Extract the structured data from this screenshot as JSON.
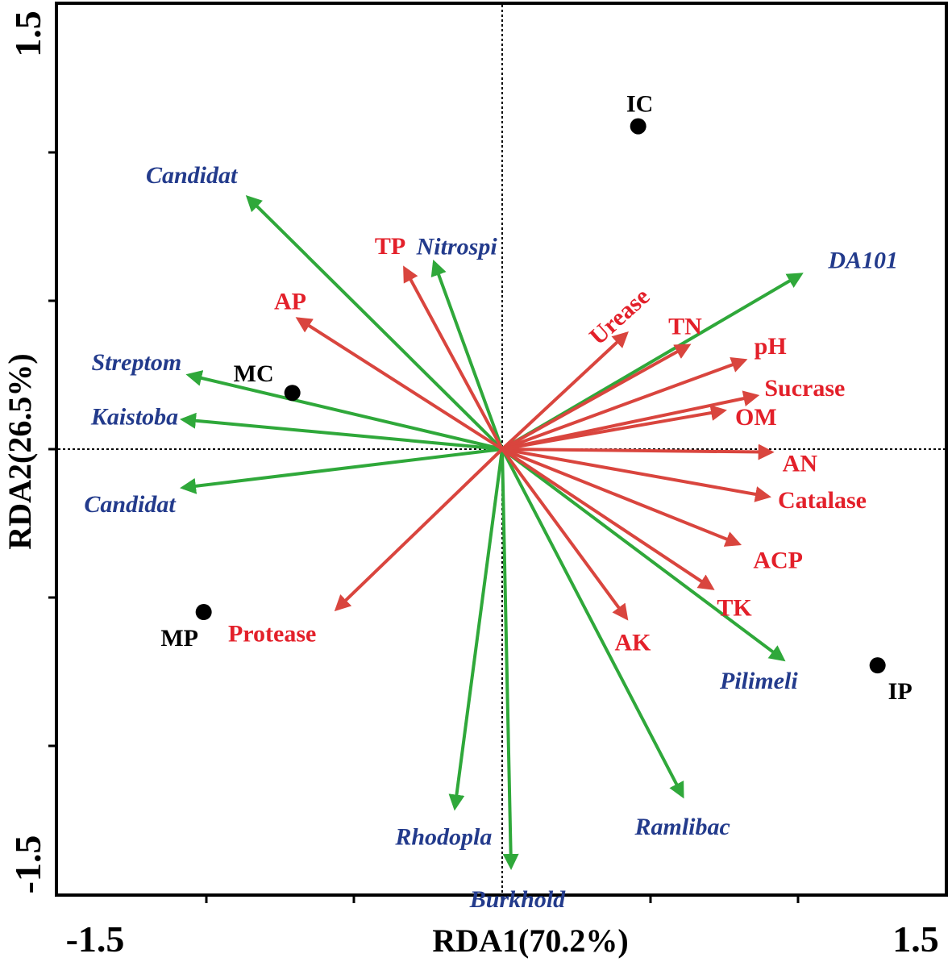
{
  "chart_data": {
    "type": "scatter",
    "subtype": "RDA biplot",
    "xlabel": "RDA1(70.2%)",
    "ylabel": "RDA2(26.5%)",
    "xlim": [
      -1.5,
      1.5
    ],
    "ylim": [
      -1.5,
      1.5
    ],
    "x_tick_labels": [
      "-1.5",
      "1.5"
    ],
    "y_tick_labels": [
      "-1.5",
      "1.5"
    ],
    "reference_lines": "dotted lines at x=0 and y=0",
    "colors": {
      "env_arrow": "#d9453e",
      "env_label": "#e3202a",
      "species_arrow": "#2fa83a",
      "species_label": "#233b8c",
      "sample": "#000000"
    },
    "samples": [
      {
        "name": "IC",
        "x": 0.46,
        "y": 1.09
      },
      {
        "name": "MC",
        "x": -0.71,
        "y": 0.19
      },
      {
        "name": "MP",
        "x": -1.01,
        "y": -0.55
      },
      {
        "name": "IP",
        "x": 1.27,
        "y": -0.73
      }
    ],
    "environmental_factors": [
      {
        "name": "TP",
        "x": -0.33,
        "y": 0.61
      },
      {
        "name": "AP",
        "x": -0.69,
        "y": 0.44
      },
      {
        "name": "Urease",
        "x": 0.42,
        "y": 0.39
      },
      {
        "name": "TN",
        "x": 0.63,
        "y": 0.35
      },
      {
        "name": "pH",
        "x": 0.82,
        "y": 0.3
      },
      {
        "name": "Sucrase",
        "x": 0.86,
        "y": 0.18
      },
      {
        "name": "OM",
        "x": 0.75,
        "y": 0.13
      },
      {
        "name": "AN",
        "x": 0.91,
        "y": -0.01
      },
      {
        "name": "Catalase",
        "x": 0.9,
        "y": -0.16
      },
      {
        "name": "ACP",
        "x": 0.8,
        "y": -0.32
      },
      {
        "name": "TK",
        "x": 0.71,
        "y": -0.47
      },
      {
        "name": "AK",
        "x": 0.42,
        "y": -0.57
      },
      {
        "name": "Protease",
        "x": -0.56,
        "y": -0.54
      }
    ],
    "species": [
      {
        "name": "Candidat",
        "x": -0.86,
        "y": 0.85
      },
      {
        "name": "Nitrospi",
        "x": -0.23,
        "y": 0.63
      },
      {
        "name": "DA101",
        "x": 1.01,
        "y": 0.59
      },
      {
        "name": "Streptom",
        "x": -1.06,
        "y": 0.25
      },
      {
        "name": "Kaistoba",
        "x": -1.08,
        "y": 0.1
      },
      {
        "name": "Candidat",
        "x": -1.08,
        "y": -0.13
      },
      {
        "name": "Pilimeli",
        "x": 0.95,
        "y": -0.71
      },
      {
        "name": "Ramlibac",
        "x": 0.61,
        "y": -1.17
      },
      {
        "name": "Rhodopla",
        "x": -0.16,
        "y": -1.21
      },
      {
        "name": "Burkhold",
        "x": 0.03,
        "y": -1.41
      }
    ]
  }
}
